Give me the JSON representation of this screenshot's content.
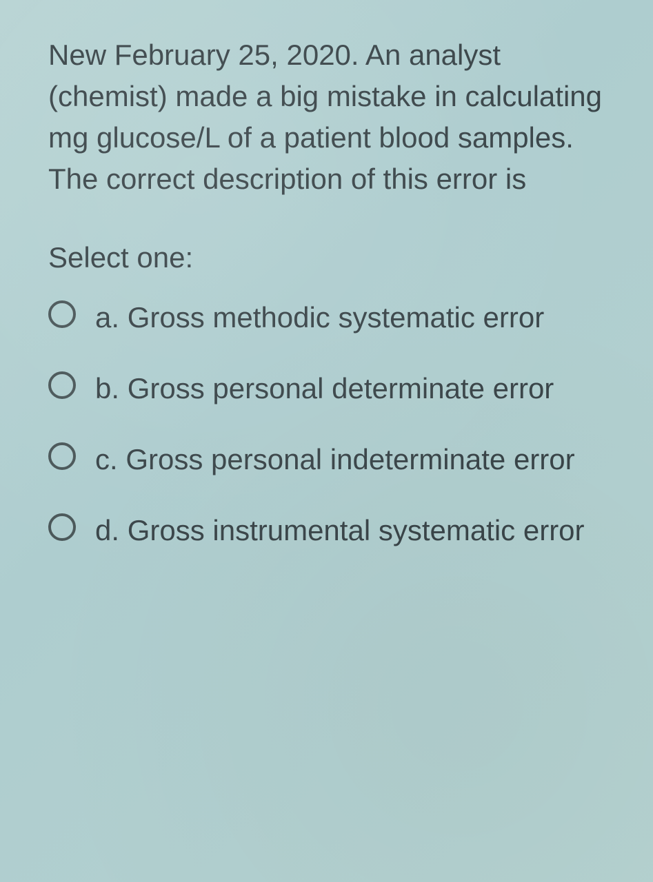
{
  "question": "New February 25, 2020. An analyst (chemist) made a big mistake in calculating mg glucose/L of a patient blood samples. The correct description of this error is",
  "selectLabel": "Select one:",
  "options": [
    {
      "id": "a",
      "text": "a. Gross methodic systematic error"
    },
    {
      "id": "b",
      "text": "b. Gross personal determinate error"
    },
    {
      "id": "c",
      "text": "c. Gross personal indeterminate error"
    },
    {
      "id": "d",
      "text": "d. Gross instrumental systematic error"
    }
  ],
  "colors": {
    "background": "#b5d2d0",
    "text": "#3a4549",
    "radioBorder": "#4a5759"
  },
  "typography": {
    "fontFamily": "Arial, Helvetica, sans-serif",
    "questionFontSize": 42,
    "optionFontSize": 42,
    "lineHeight": 1.43
  }
}
